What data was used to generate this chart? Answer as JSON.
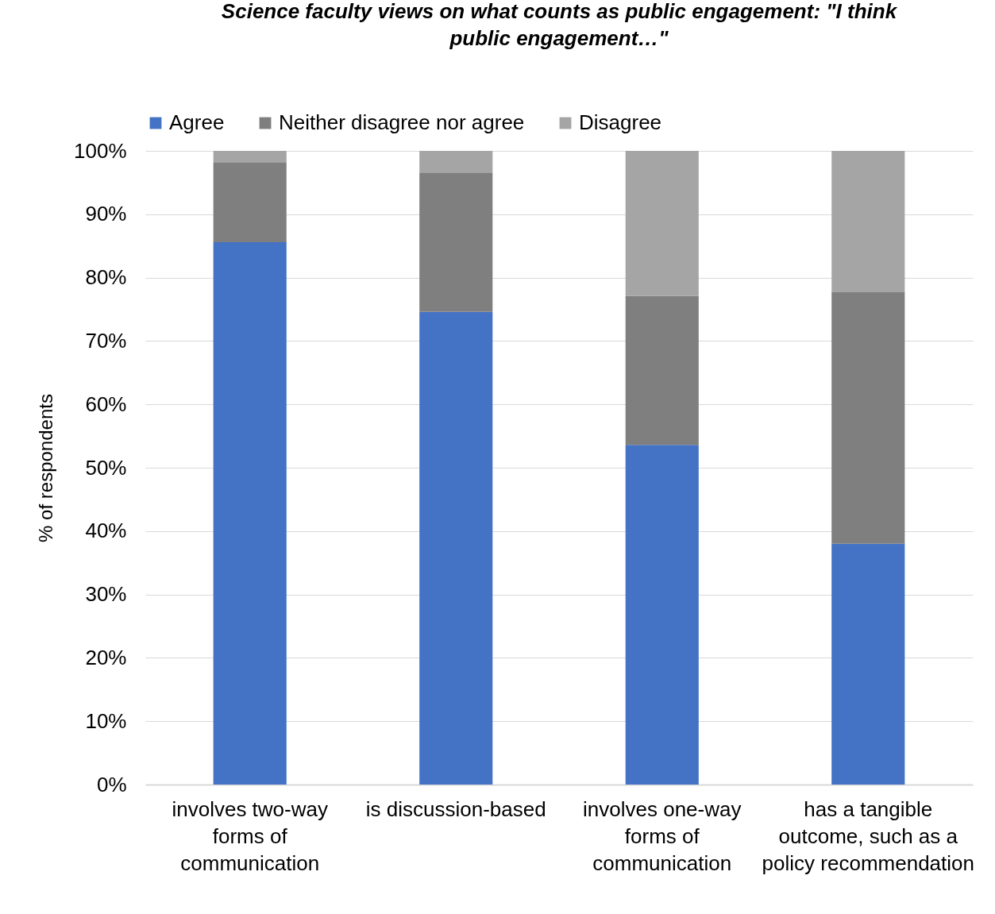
{
  "chart_data": {
    "type": "bar",
    "stacked": true,
    "title": "Science faculty views on what counts as public engagement:    \"I think public engagement…\"",
    "ylabel": "% of respondents",
    "categories": [
      "involves two-way forms of communication",
      "is discussion-based",
      "involves one-way forms of communication",
      "has a tangible outcome, such as a policy recommendation"
    ],
    "series": [
      {
        "name": "Agree",
        "color": "#4472c4",
        "values": [
          85.6,
          74.6,
          53.6,
          38.0
        ]
      },
      {
        "name": "Neither disagree nor agree",
        "color": "#7f7f7f",
        "values": [
          12.6,
          22.0,
          23.5,
          39.7
        ]
      },
      {
        "name": "Disagree",
        "color": "#a5a5a5",
        "values": [
          1.8,
          3.4,
          22.9,
          22.3
        ]
      }
    ],
    "ylim": [
      0,
      100
    ],
    "yticks": [
      {
        "value": 0,
        "label": "0%"
      },
      {
        "value": 10,
        "label": "10%"
      },
      {
        "value": 20,
        "label": "20%"
      },
      {
        "value": 30,
        "label": "30%"
      },
      {
        "value": 40,
        "label": "40%"
      },
      {
        "value": 50,
        "label": "50%"
      },
      {
        "value": 60,
        "label": "60%"
      },
      {
        "value": 70,
        "label": "70%"
      },
      {
        "value": 80,
        "label": "80%"
      },
      {
        "value": 90,
        "label": "90%"
      },
      {
        "value": 100,
        "label": "100%"
      }
    ],
    "grid": "y",
    "legend": "top"
  }
}
